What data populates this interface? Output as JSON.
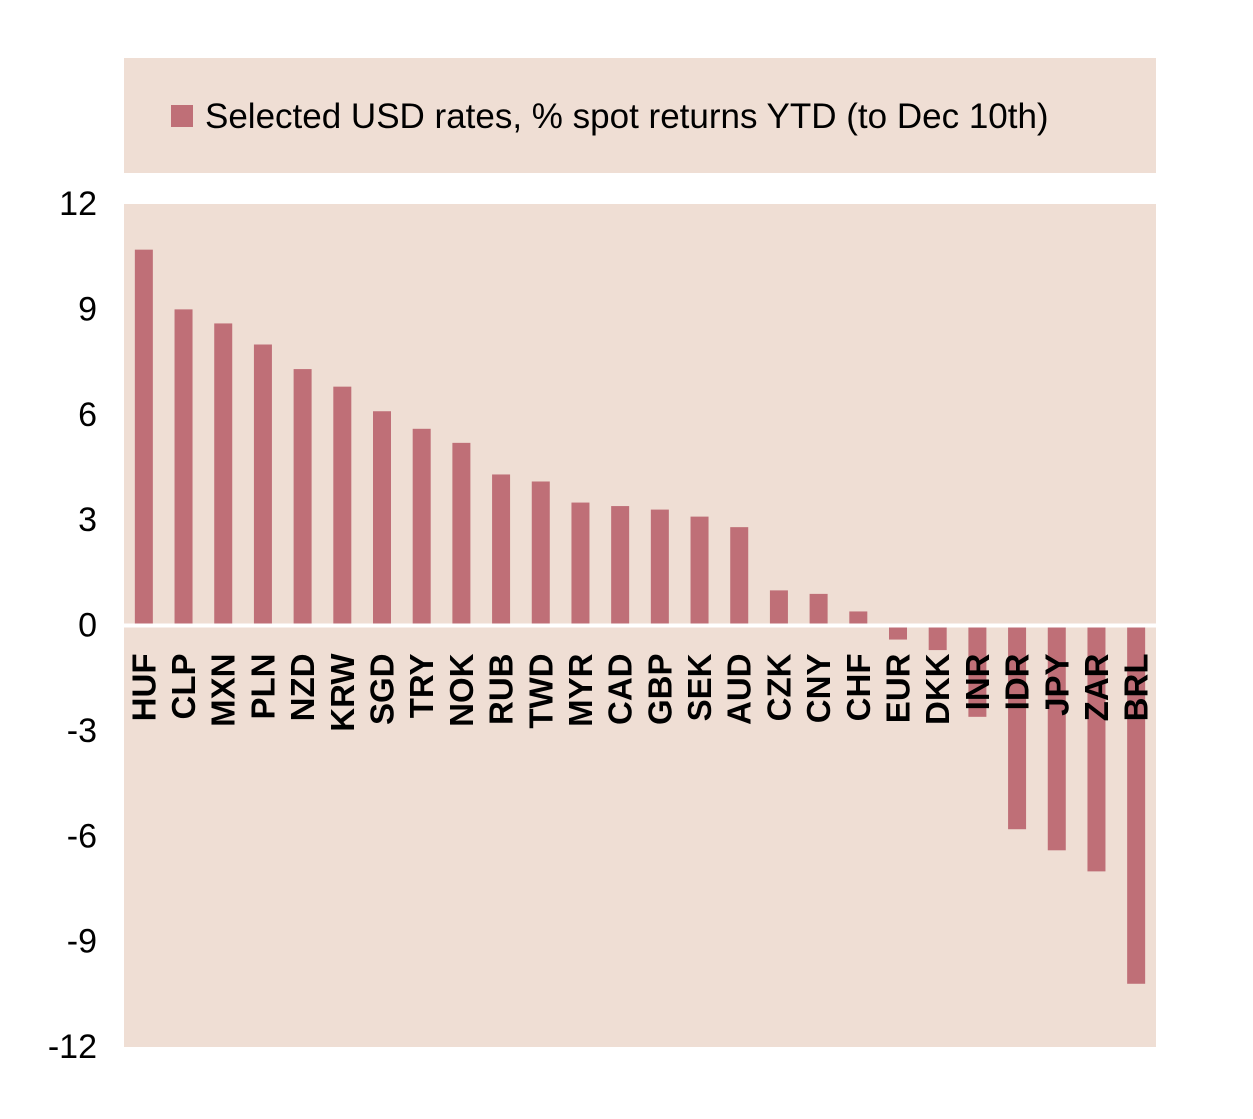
{
  "colors": {
    "background": "#efded4",
    "bar": "#bf6f77",
    "axis": "#ffffff",
    "text": "#000000"
  },
  "chart_data": {
    "type": "bar",
    "title": "",
    "xlabel": "",
    "ylabel": "",
    "ylim": [
      -12,
      12
    ],
    "yticks": [
      12,
      9,
      6,
      3,
      0,
      -3,
      -6,
      -9,
      -12
    ],
    "grid": false,
    "legend_position": "top",
    "categories": [
      "HUF",
      "CLP",
      "MXN",
      "PLN",
      "NZD",
      "KRW",
      "SGD",
      "TRY",
      "NOK",
      "RUB",
      "TWD",
      "MYR",
      "CAD",
      "GBP",
      "SEK",
      "AUD",
      "CZK",
      "CNY",
      "CHF",
      "EUR",
      "DKK",
      "INR",
      "IDR",
      "JPY",
      "ZAR",
      "BRL"
    ],
    "series": [
      {
        "name": "Selected USD rates, % spot returns YTD (to Dec 10th)",
        "values": [
          10.7,
          9.0,
          8.6,
          8.0,
          7.3,
          6.8,
          6.1,
          5.6,
          5.2,
          4.3,
          4.1,
          3.5,
          3.4,
          3.3,
          3.1,
          2.8,
          1.0,
          0.9,
          0.4,
          -0.4,
          -0.7,
          -2.6,
          -5.8,
          -6.4,
          -7.0,
          -10.2
        ]
      }
    ]
  }
}
